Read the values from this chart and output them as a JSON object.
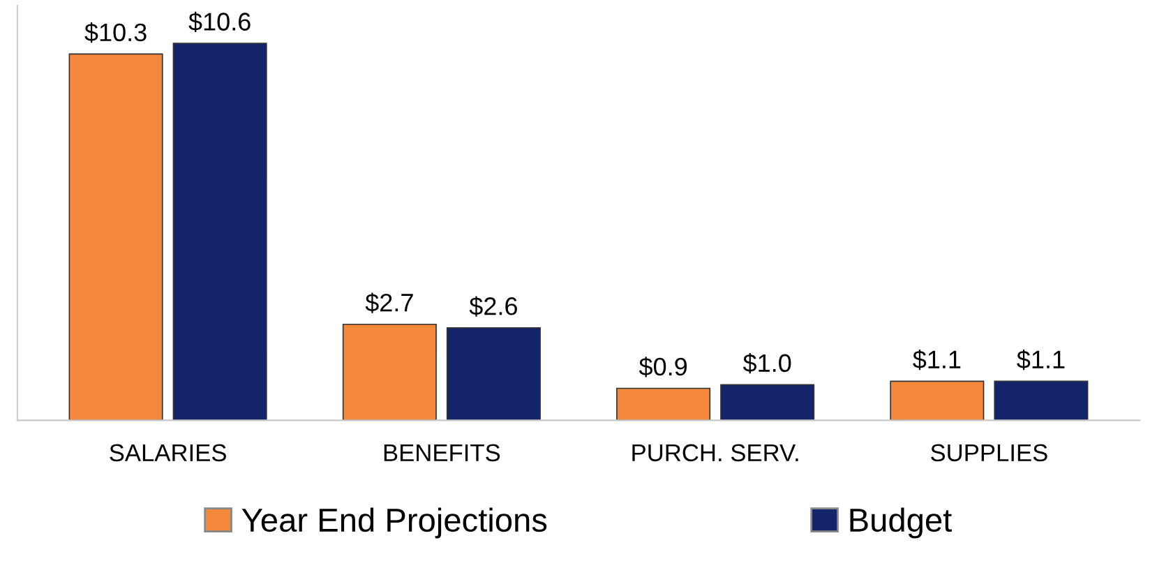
{
  "chart_data": {
    "type": "bar",
    "categories": [
      "SALARIES",
      "BENEFITS",
      "PURCH. SERV.",
      "SUPPLIES"
    ],
    "series": [
      {
        "name": "Year End Projections",
        "color": "#f5883a",
        "values": [
          10.3,
          2.7,
          0.9,
          1.1
        ],
        "value_labels": [
          "$10.3",
          "$2.7",
          "$0.9",
          "$1.1"
        ]
      },
      {
        "name": "Budget",
        "color": "#13246b",
        "values": [
          10.6,
          2.6,
          1.0,
          1.1
        ],
        "value_labels": [
          "$10.6",
          "$2.6",
          "$1.0",
          "$1.1"
        ]
      }
    ],
    "legend": "bottom",
    "grid": false
  }
}
